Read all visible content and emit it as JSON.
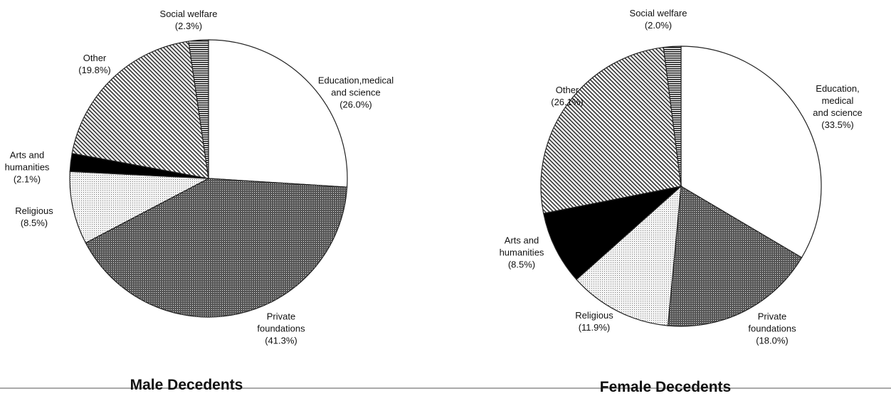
{
  "chart_data": [
    {
      "type": "pie",
      "title": "Male Decedents",
      "categories": [
        "Education,medical\nand science",
        "Private\nfoundations",
        "Religious",
        "Arts and\nhumanities",
        "Other",
        "Social welfare"
      ],
      "values": [
        26.0,
        41.3,
        8.5,
        2.1,
        19.8,
        2.3
      ],
      "value_labels": [
        "(26.0%)",
        "(41.3%)",
        "(8.5%)",
        "(2.1%)",
        "(19.8%)",
        "(2.3%)"
      ]
    },
    {
      "type": "pie",
      "title": "Female Decedents",
      "categories": [
        "Education, medical\nand science",
        "Private\nfoundations",
        "Religious",
        "Arts and\nhumanities",
        "Other",
        "Social welfare"
      ],
      "values": [
        33.5,
        18.0,
        11.9,
        8.5,
        26.1,
        2.0
      ],
      "value_labels": [
        "(33.5%)",
        "(18.0%)",
        "(11.9%)",
        "(8.5%)",
        "(26.1%)",
        "(2.0%)"
      ]
    }
  ]
}
